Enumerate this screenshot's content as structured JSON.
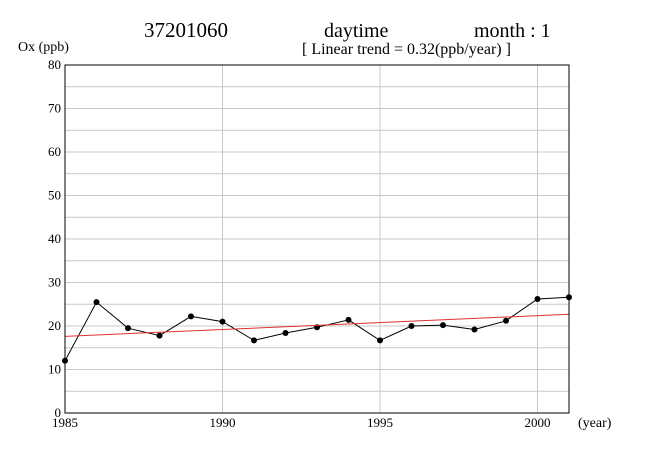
{
  "header": {
    "station_id": "37201060",
    "period": "daytime",
    "month": "month : 1",
    "trend_note": "[ Linear trend = 0.32(ppb/year) ]"
  },
  "chart_data": {
    "type": "line",
    "ylabel": "Ox (ppb)",
    "xlabel": "(year)",
    "xlim": [
      1985,
      2001
    ],
    "ylim": [
      0,
      80
    ],
    "x_ticks": [
      1985,
      1990,
      1995,
      2000
    ],
    "y_ticks": [
      0,
      10,
      20,
      30,
      40,
      50,
      60,
      70,
      80
    ],
    "grid": true,
    "series": [
      {
        "type": "line",
        "color": "#000000",
        "marker": "circle",
        "x": [
          1985,
          1986,
          1987,
          1988,
          1989,
          1990,
          1991,
          1992,
          1993,
          1994,
          1995,
          1996,
          1997,
          1998,
          1999,
          2000,
          2001
        ],
        "y": [
          12.0,
          25.5,
          19.5,
          17.8,
          22.2,
          21.0,
          16.7,
          18.4,
          19.7,
          21.4,
          16.7,
          20.0,
          20.2,
          19.2,
          21.2,
          26.2,
          26.6
        ]
      },
      {
        "type": "trend",
        "color": "#e03030",
        "x": [
          1985,
          2001
        ],
        "y": [
          17.6,
          22.7
        ]
      }
    ]
  }
}
